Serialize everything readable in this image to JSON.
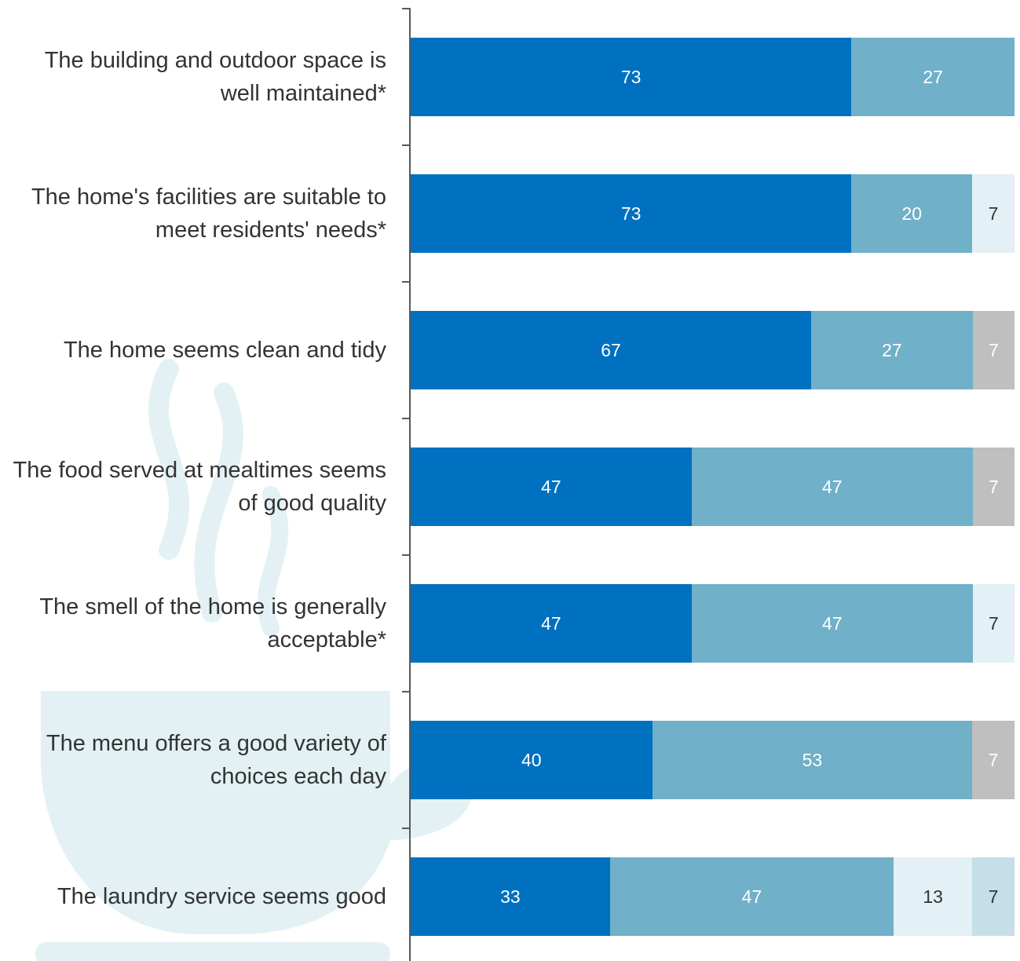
{
  "chart_data": {
    "type": "stacked-bar-horizontal",
    "categories": [
      "The building and outdoor space is well maintained*",
      "The home's facilities are suitable to meet residents' needs*",
      "The home seems clean and tidy",
      "The food served at mealtimes seems of good quality",
      "The smell of the home is generally acceptable*",
      "The menu offers a good variety of choices each day",
      "The laundry service seems good"
    ],
    "series": [
      {
        "color": "#0070c0",
        "label_color": "#ffffff",
        "values": [
          73,
          73,
          67,
          47,
          47,
          40,
          33
        ]
      },
      {
        "color": "#70b0c8",
        "label_color": "#ffffff",
        "values": [
          27,
          20,
          27,
          47,
          47,
          53,
          47
        ]
      },
      {
        "color": "#e3f0f5",
        "label_color": "#333333",
        "values": [
          null,
          7,
          null,
          null,
          7,
          null,
          13
        ]
      },
      {
        "color": "#c4dfe8",
        "label_color": "#333333",
        "values": [
          null,
          null,
          null,
          null,
          null,
          null,
          7
        ]
      },
      {
        "color": "#bfbfbf",
        "label_color": "#ffffff",
        "values": [
          null,
          null,
          7,
          7,
          null,
          7,
          null
        ]
      }
    ]
  }
}
